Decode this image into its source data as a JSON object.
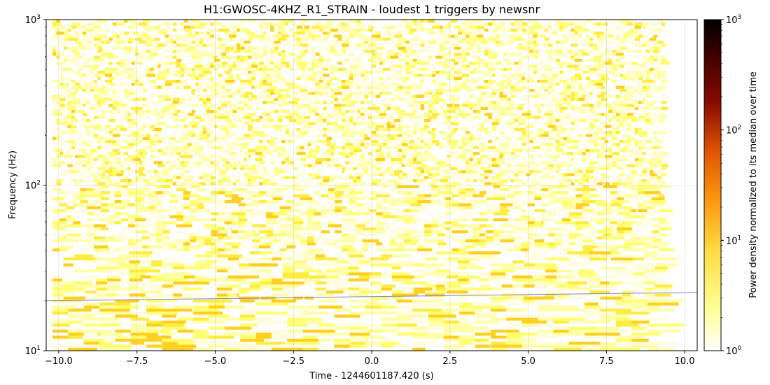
{
  "chart_data": {
    "type": "heatmap",
    "title": "H1:GWOSC-4KHZ_R1_STRAIN - loudest 1 triggers by newsnr",
    "xlabel": "Time - 1244601187.420 (s)",
    "ylabel": "Frequency (Hz)",
    "xlim": [
      -10.4,
      10.4
    ],
    "ylim": [
      10,
      1000
    ],
    "yscale": "log",
    "x_ticks": [
      -10.0,
      -7.5,
      -5.0,
      -2.5,
      0.0,
      2.5,
      5.0,
      7.5,
      10.0
    ],
    "x_tick_labels": [
      "−10.0",
      "−7.5",
      "−5.0",
      "−2.5",
      "0.0",
      "2.5",
      "5.0",
      "7.5",
      "10.0"
    ],
    "y_ticks": [
      10,
      100,
      1000
    ],
    "y_tick_labels": [
      {
        "base": "10",
        "exp": "1"
      },
      {
        "base": "10",
        "exp": "2"
      },
      {
        "base": "10",
        "exp": "3"
      }
    ],
    "data_extent_x": [
      -10.2,
      9.3
    ],
    "grid": true,
    "colorbar": {
      "label": "Power density normalized to its median over time",
      "scale": "log",
      "range": [
        1,
        1000
      ],
      "ticks": [
        1,
        10,
        100,
        1000
      ],
      "tick_labels": [
        {
          "base": "10",
          "exp": "0"
        },
        {
          "base": "10",
          "exp": "1"
        },
        {
          "base": "10",
          "exp": "2"
        },
        {
          "base": "10",
          "exp": "3"
        }
      ],
      "colormap": [
        "#ffffff",
        "#ffff80",
        "#ffcc33",
        "#ff8800",
        "#cc3300",
        "#660000",
        "#000000"
      ]
    },
    "track": {
      "x": [
        -10.4,
        10.4
      ],
      "y": [
        20,
        22.5
      ],
      "color": "#8080d8"
    },
    "power_note": "background noise, normalized power mostly between 1 and ~5"
  }
}
